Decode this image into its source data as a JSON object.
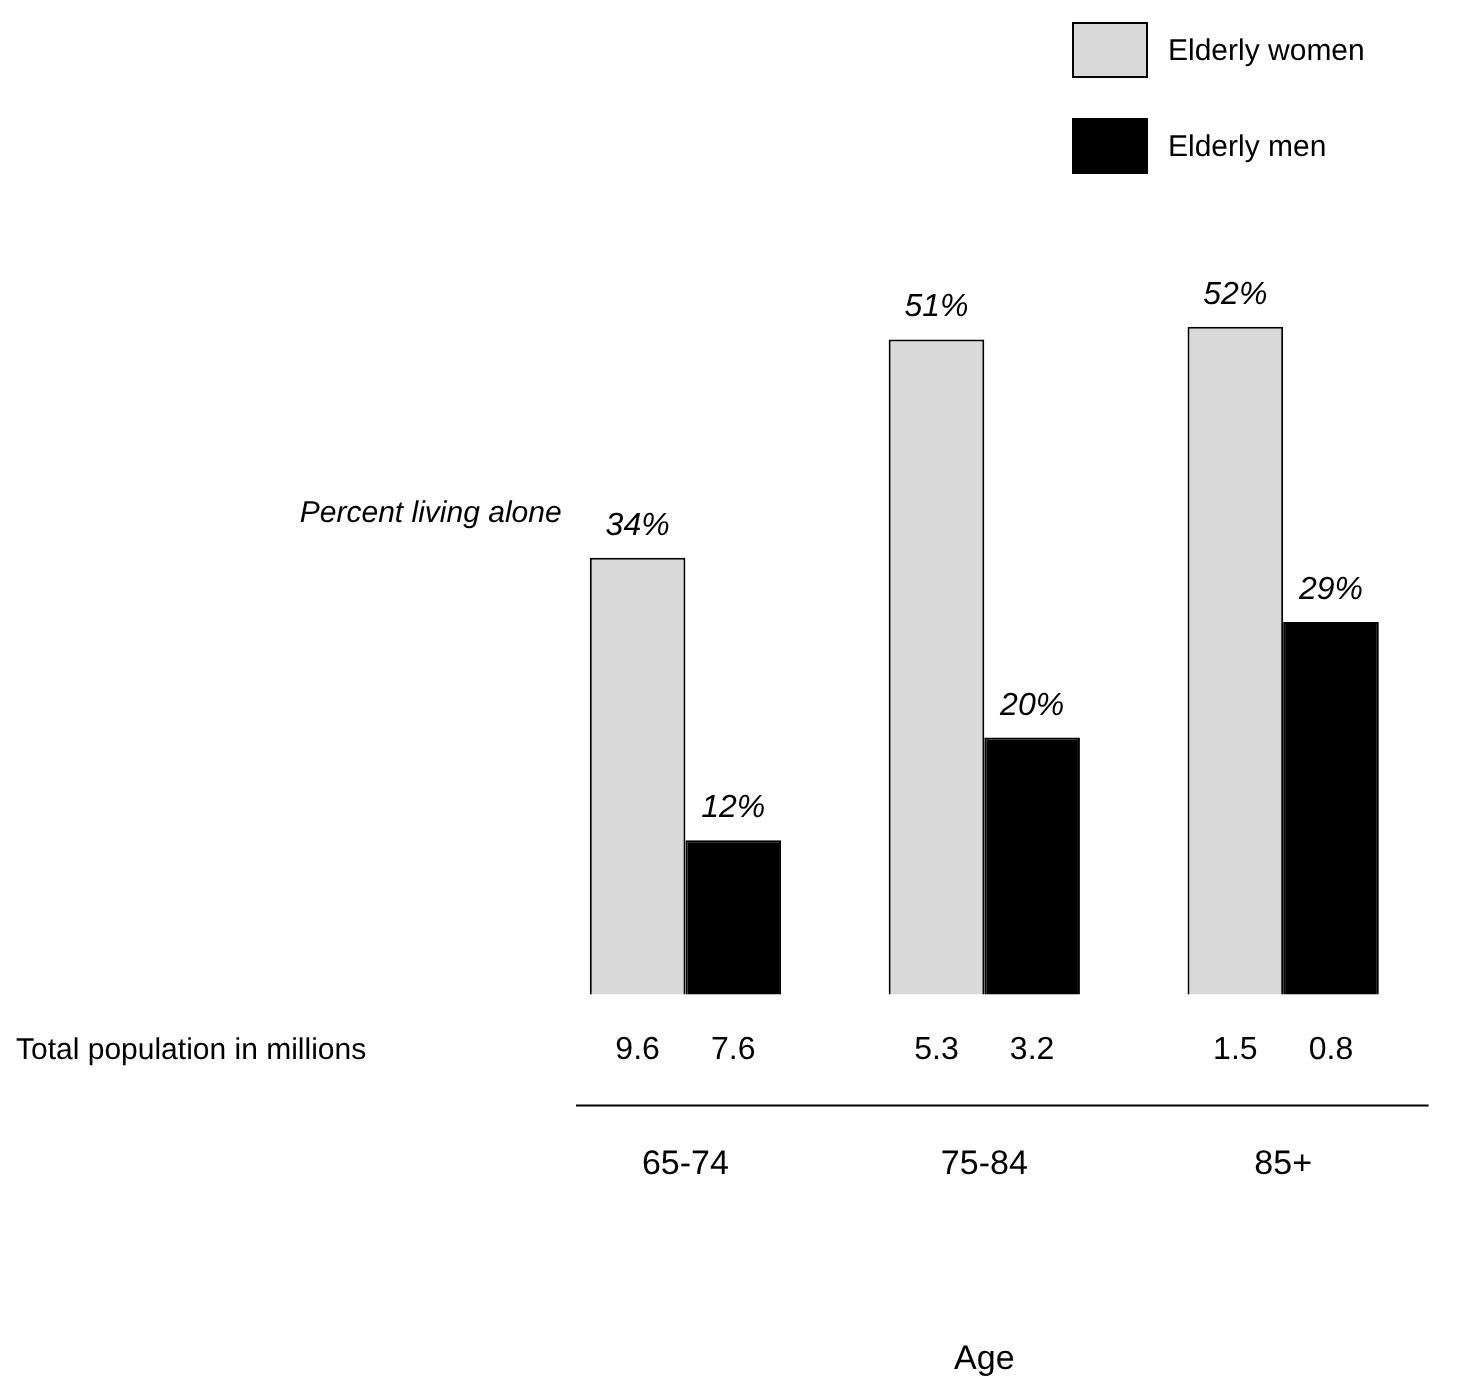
{
  "chart_data": {
    "type": "bar",
    "xlabel": "Age",
    "categories": [
      "65-74",
      "75-84",
      "85+"
    ],
    "series": [
      {
        "name": "Elderly women",
        "color": "#d9d9d9",
        "values": [
          34,
          51,
          52
        ],
        "value_labels": [
          "34%",
          "51%",
          "52%"
        ]
      },
      {
        "name": "Elderly men",
        "color": "#000000",
        "values": [
          12,
          20,
          29
        ],
        "value_labels": [
          "12%",
          "20%",
          "29%"
        ]
      }
    ],
    "legend": "top right",
    "grid": false,
    "tick_labels": "x",
    "annotations": [
      "Percent living alone",
      "Total population in millions",
      "9.6",
      "7.6",
      "5.3",
      "3.2",
      "1.5",
      "0.8"
    ]
  }
}
